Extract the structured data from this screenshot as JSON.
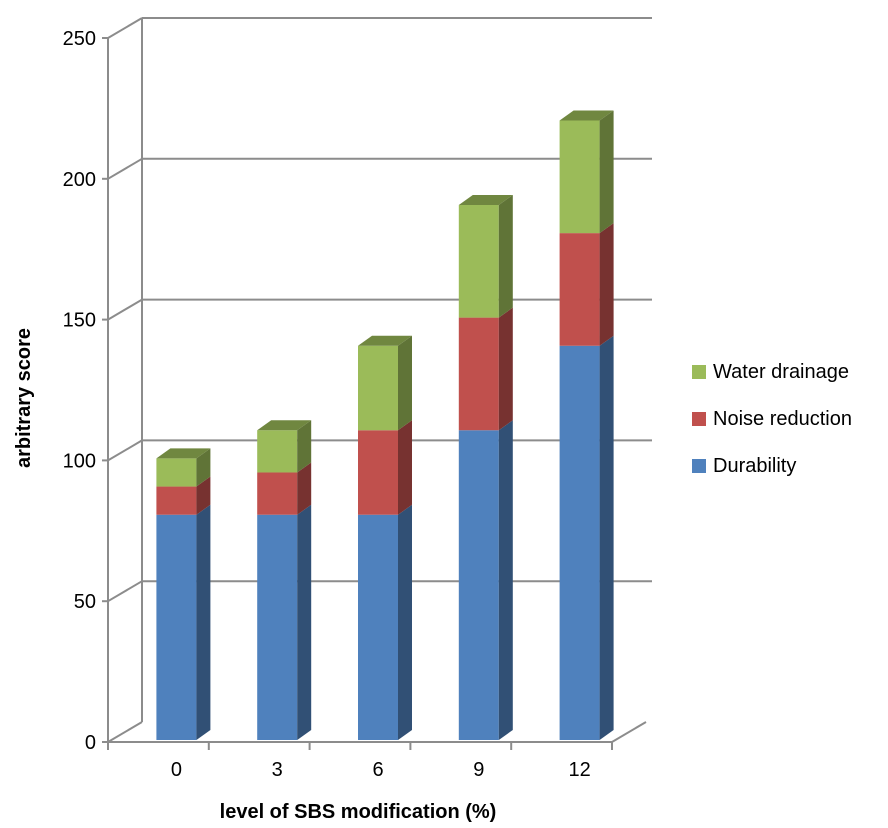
{
  "chart_data": {
    "type": "bar",
    "stacked": true,
    "three_d": true,
    "categories": [
      "0",
      "3",
      "6",
      "9",
      "12"
    ],
    "series": [
      {
        "name": "Durability",
        "values": [
          80,
          80,
          80,
          110,
          140
        ],
        "color": "#4f81bd"
      },
      {
        "name": "Noise reduction",
        "values": [
          10,
          15,
          30,
          40,
          40
        ],
        "color": "#c0504d"
      },
      {
        "name": "Water drainage",
        "values": [
          10,
          15,
          30,
          40,
          40
        ],
        "color": "#9bbb59"
      }
    ],
    "title": "",
    "xlabel": "level of SBS modification (%)",
    "ylabel": "arbitrary score",
    "ylim": [
      0,
      250
    ],
    "yticks": [
      "0",
      "50",
      "100",
      "150",
      "200",
      "250"
    ],
    "grid": true,
    "legend_position": "right"
  }
}
